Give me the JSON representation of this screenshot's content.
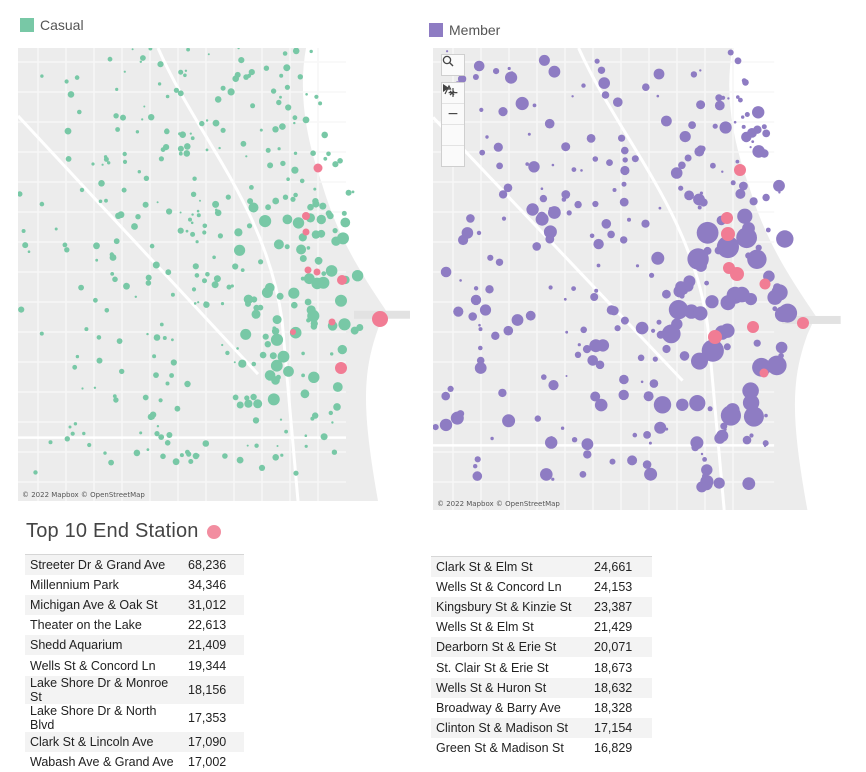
{
  "legends": {
    "casual": {
      "label": "Casual",
      "color": "#78c8a6"
    },
    "member": {
      "label": "Member",
      "color": "#8e7cc3"
    }
  },
  "highlight_color": "#f17c94",
  "map_attribution": "© 2022 Mapbox © OpenStreetMap",
  "map_controls": {
    "search_icon": "magnifier-icon",
    "zoom_in": "+",
    "zoom_out": "−",
    "reset_icon": "pin-reset-icon",
    "expand_icon": "play-icon"
  },
  "top10": {
    "title": "Top 10 End Station",
    "casual": [
      {
        "station": "Streeter Dr & Grand Ave",
        "count": "68,236"
      },
      {
        "station": "Millennium Park",
        "count": "34,346"
      },
      {
        "station": "Michigan Ave & Oak St",
        "count": "31,012"
      },
      {
        "station": "Theater on the Lake",
        "count": "22,613"
      },
      {
        "station": "Shedd Aquarium",
        "count": "21,409"
      },
      {
        "station": "Wells St & Concord Ln",
        "count": "19,344"
      },
      {
        "station": "Lake Shore Dr & Monroe St",
        "count": "18,156"
      },
      {
        "station": "Lake Shore Dr & North Blvd",
        "count": "17,353"
      },
      {
        "station": "Clark St & Lincoln Ave",
        "count": "17,090"
      },
      {
        "station": "Wabash Ave & Grand Ave",
        "count": "17,002"
      }
    ],
    "member": [
      {
        "station": "Clark St & Elm St",
        "count": "24,661"
      },
      {
        "station": "Wells St & Concord Ln",
        "count": "24,153"
      },
      {
        "station": "Kingsbury St & Kinzie St",
        "count": "23,387"
      },
      {
        "station": "Wells St & Elm St",
        "count": "21,429"
      },
      {
        "station": "Dearborn St & Erie St",
        "count": "20,071"
      },
      {
        "station": "St. Clair St & Erie St",
        "count": "18,673"
      },
      {
        "station": "Wells St & Huron St",
        "count": "18,632"
      },
      {
        "station": "Broadway & Barry Ave",
        "count": "18,328"
      },
      {
        "station": "Clinton St & Madison St",
        "count": "17,154"
      },
      {
        "station": "Green St & Madison St",
        "count": "16,829"
      }
    ]
  }
}
